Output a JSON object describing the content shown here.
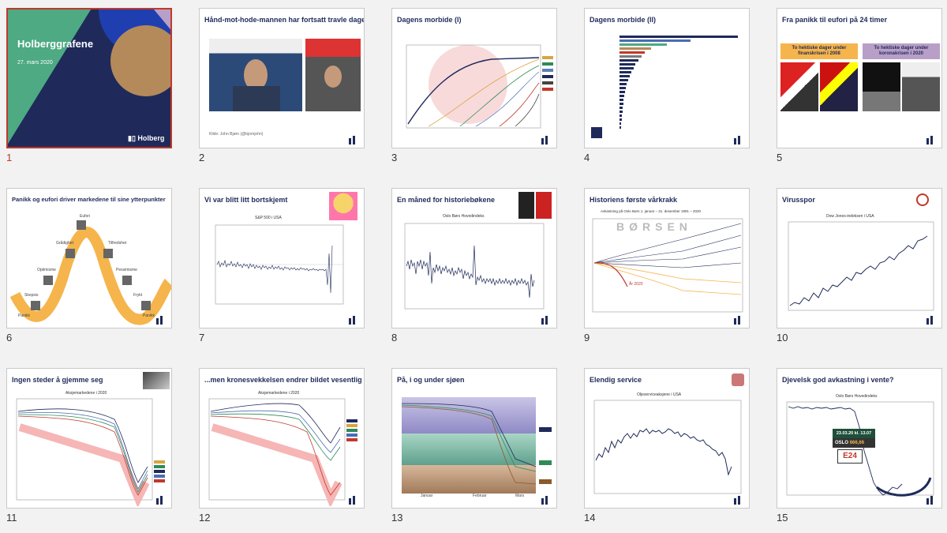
{
  "slides": [
    {
      "num": "1",
      "title": "Holberggrafene",
      "subtitle": "27. mars 2020",
      "logo": "Holberg"
    },
    {
      "num": "2",
      "title": "Hånd-mot-hode-mannen har fortsatt travle dager",
      "caption": "Kilde: John Bjørn (@bjornjohn)"
    },
    {
      "num": "3",
      "title": "Dagens morbide (I)"
    },
    {
      "num": "4",
      "title": "Dagens morbide (II)"
    },
    {
      "num": "5",
      "title": "Fra panikk til eufori på 24 timer",
      "box_left": "To hektiske dager under finanskrisen i 2008",
      "box_right": "To hektiske dager under koronakrisen i 2020"
    },
    {
      "num": "6",
      "title": "Panikk og eufori driver markedene til sine ytterpunkter",
      "stages": [
        "Eufori",
        "Grådighet",
        "Tilfredshet",
        "Optimisme",
        "Pessimisme",
        "Skepsis",
        "Frykt",
        "Panikk",
        "Panikk"
      ]
    },
    {
      "num": "7",
      "title": "Vi var blitt litt bortskjemt",
      "chart_title": "S&P 500 i USA"
    },
    {
      "num": "8",
      "title": "En måned for historiebøkene",
      "chart_title": "Oslo Børs Hovedindeks"
    },
    {
      "num": "9",
      "title": "Historiens første vårkrakk",
      "chart_title": "Avkastning på Oslo Børs 1. januar – 31. desember 1991 – 2020",
      "stamp": "BØRSEN",
      "year_label": "År 2020"
    },
    {
      "num": "10",
      "title": "Virusspor",
      "chart_title": "Dow Jones-indeksen i USA"
    },
    {
      "num": "11",
      "title": "Ingen steder å gjemme seg",
      "chart_title": "Aksjemarkedene i 2020"
    },
    {
      "num": "12",
      "title": "...men kronesvekkelsen endrer bildet vesentlig",
      "chart_title": "Aksjemarkedene i 2020"
    },
    {
      "num": "13",
      "title": "På, i og under sjøen",
      "months": [
        "Januar",
        "Februar",
        "Mars"
      ]
    },
    {
      "num": "14",
      "title": "Elendig service",
      "chart_title": "Oljeserviceaksjene i USA"
    },
    {
      "num": "15",
      "title": "Djevelsk god avkastning i vente?",
      "chart_title": "Oslo Børs Hovedindeks",
      "ticker_date": "23.03.20 kl. 13.07",
      "ticker_label": "OSLO",
      "ticker_value": "666,66",
      "brand": "E24"
    }
  ],
  "colors": {
    "navy": "#1f2a5a",
    "green": "#4daa83",
    "blue": "#1f3fb0",
    "brown": "#b58a5a",
    "lavender": "#b89fc7",
    "orange": "#f5b54c",
    "selection": "#c0392b"
  }
}
